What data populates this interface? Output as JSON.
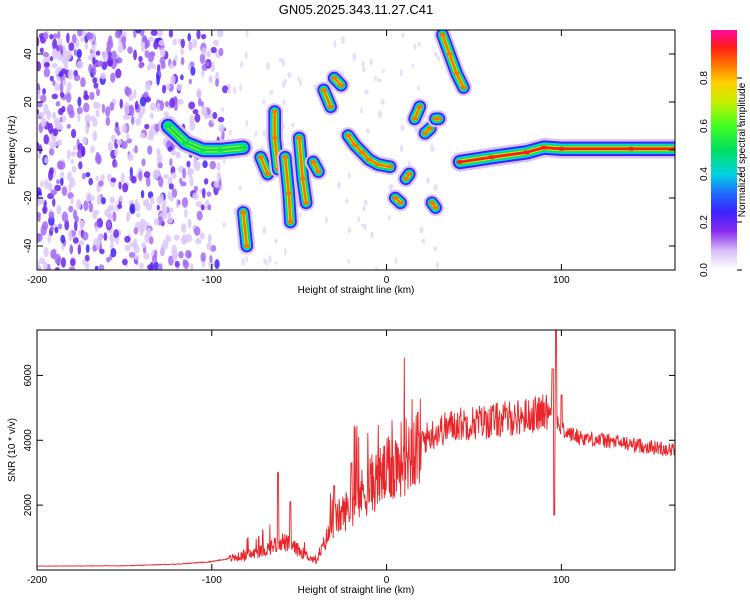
{
  "title": "GN05.2025.343.11.27.C41",
  "chart_data": [
    {
      "type": "heatmap",
      "title": "GN05.2025.343.11.27.C41",
      "xlabel": "Height of straight line (km)",
      "ylabel": "Frequency (Hz)",
      "xlim": [
        -200,
        165
      ],
      "ylim": [
        -50,
        50
      ],
      "x_ticks": [
        -200,
        -100,
        0,
        100
      ],
      "y_ticks": [
        -40,
        -20,
        0,
        20,
        40
      ],
      "colorbar": {
        "label": "Normalized spectral amplitude",
        "range": [
          0,
          1
        ],
        "ticks": [
          "0.0",
          "0.2",
          "0.4",
          "0.6",
          "0.8"
        ]
      },
      "features": [
        {
          "name": "broadband noise",
          "x_range": [
            -200,
            -100
          ],
          "freq_range": [
            -50,
            50
          ]
        },
        {
          "name": "main track",
          "points": [
            [
              -125,
              10
            ],
            [
              -115,
              3
            ],
            [
              -105,
              0
            ],
            [
              -95,
              0
            ],
            [
              -82,
              1
            ]
          ]
        },
        {
          "name": "track A",
          "points": [
            [
              -82,
              -26
            ],
            [
              -80,
              -40
            ]
          ]
        },
        {
          "name": "track B",
          "points": [
            [
              -72,
              -3
            ],
            [
              -68,
              -10
            ]
          ]
        },
        {
          "name": "track C",
          "points": [
            [
              -64,
              16
            ],
            [
              -64,
              5
            ],
            [
              -62,
              -8
            ]
          ]
        },
        {
          "name": "track D",
          "points": [
            [
              -58,
              -3
            ],
            [
              -56,
              -18
            ],
            [
              -55,
              -30
            ]
          ]
        },
        {
          "name": "track E",
          "points": [
            [
              -50,
              5
            ],
            [
              -48,
              -12
            ],
            [
              -46,
              -22
            ]
          ]
        },
        {
          "name": "track F",
          "points": [
            [
              -42,
              -5
            ],
            [
              -39,
              -9
            ]
          ]
        },
        {
          "name": "track G",
          "points": [
            [
              -36,
              25
            ],
            [
              -32,
              18
            ]
          ]
        },
        {
          "name": "track H",
          "points": [
            [
              -30,
              30
            ],
            [
              -26,
              27
            ]
          ]
        },
        {
          "name": "track I",
          "points": [
            [
              -22,
              6
            ],
            [
              -18,
              2
            ],
            [
              -14,
              -1
            ],
            [
              -10,
              -4
            ],
            [
              -5,
              -6
            ],
            [
              2,
              -7
            ]
          ]
        },
        {
          "name": "track J",
          "points": [
            [
              5,
              -20
            ],
            [
              8,
              -22
            ]
          ]
        },
        {
          "name": "track K",
          "points": [
            [
              11,
              -12
            ],
            [
              13,
              -10
            ]
          ]
        },
        {
          "name": "track L",
          "points": [
            [
              16,
              13
            ],
            [
              19,
              18
            ]
          ]
        },
        {
          "name": "track M",
          "points": [
            [
              22,
              7
            ],
            [
              25,
              9
            ]
          ]
        },
        {
          "name": "track N",
          "points": [
            [
              26,
              -22
            ],
            [
              28,
              -24
            ]
          ]
        },
        {
          "name": "track O",
          "points": [
            [
              28,
              13
            ],
            [
              30,
              13
            ]
          ]
        },
        {
          "name": "track P",
          "points": [
            [
              32,
              48
            ],
            [
              36,
              40
            ],
            [
              40,
              32
            ],
            [
              44,
              26
            ]
          ]
        },
        {
          "name": "main carrier",
          "points": [
            [
              42,
              -5
            ],
            [
              60,
              -3
            ],
            [
              80,
              -1
            ],
            [
              90,
              1
            ],
            [
              100,
              0.5
            ],
            [
              140,
              0.5
            ],
            [
              165,
              0.5
            ]
          ]
        }
      ]
    },
    {
      "type": "line",
      "xlabel": "Height of straight line (km)",
      "ylabel": "SNR (10 * v/v)",
      "xlim": [
        -200,
        165
      ],
      "ylim": [
        0,
        7400
      ],
      "x_ticks": [
        -200,
        -100,
        0,
        100
      ],
      "y_ticks": [
        2000,
        4000,
        6000
      ],
      "series": [
        {
          "name": "SNR",
          "color": "#e8262a",
          "envelope": [
            [
              -200,
              120
            ],
            [
              -150,
              130
            ],
            [
              -120,
              180
            ],
            [
              -100,
              260
            ],
            [
              -80,
              450
            ],
            [
              -70,
              600
            ],
            [
              -60,
              900
            ],
            [
              -50,
              600
            ],
            [
              -40,
              250
            ],
            [
              -35,
              900
            ],
            [
              -30,
              1500
            ],
            [
              -20,
              2000
            ],
            [
              -10,
              2600
            ],
            [
              0,
              3000
            ],
            [
              10,
              3500
            ],
            [
              20,
              4000
            ],
            [
              30,
              4300
            ],
            [
              40,
              4500
            ],
            [
              60,
              4600
            ],
            [
              80,
              4750
            ],
            [
              90,
              4850
            ],
            [
              95,
              5000
            ],
            [
              100,
              4300
            ],
            [
              110,
              4100
            ],
            [
              130,
              3950
            ],
            [
              150,
              3800
            ],
            [
              165,
              3700
            ]
          ],
          "spikes": [
            [
              -62,
              3000
            ],
            [
              -55,
              2100
            ],
            [
              -30,
              2600
            ],
            [
              -20,
              3300
            ],
            [
              95,
              6200
            ],
            [
              97,
              7400
            ],
            [
              96,
              1700
            ],
            [
              100,
              5400
            ]
          ]
        }
      ]
    }
  ]
}
